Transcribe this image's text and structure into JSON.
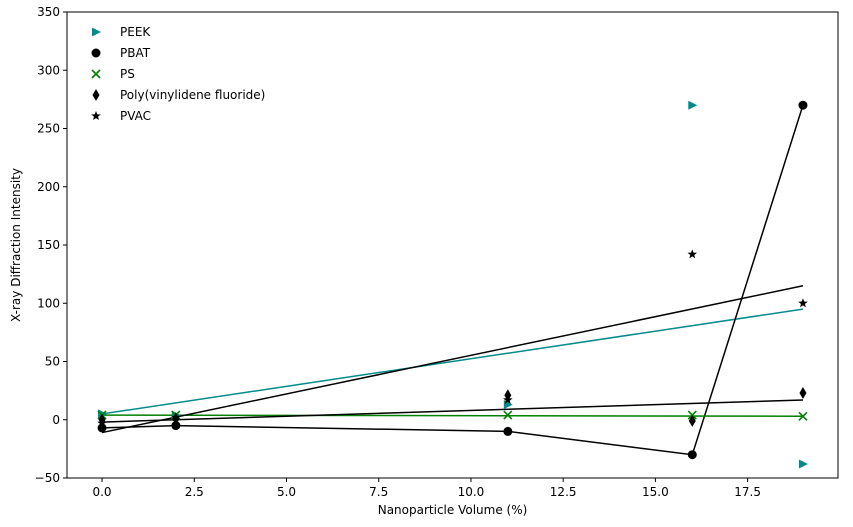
{
  "chart_data": {
    "type": "scatter",
    "xlabel": "Nanoparticle Volume (%)",
    "ylabel": "X-ray Diffraction Intensity",
    "xlim": [
      -0.95,
      19.95
    ],
    "ylim": [
      -50,
      350
    ],
    "xticks": [
      0.0,
      2.5,
      5.0,
      7.5,
      10.0,
      12.5,
      15.0,
      17.5
    ],
    "xtick_labels": [
      "0.0",
      "2.5",
      "5.0",
      "7.5",
      "10.0",
      "12.5",
      "15.0",
      "17.5"
    ],
    "yticks": [
      -50,
      0,
      50,
      100,
      150,
      200,
      250,
      300,
      350
    ],
    "ytick_labels": [
      "−50",
      "0",
      "50",
      "100",
      "150",
      "200",
      "250",
      "300",
      "350"
    ],
    "grid": false,
    "legend_position": "top-left",
    "series": [
      {
        "name": "PEEK",
        "marker": "triangle-right",
        "color": "#008b8b",
        "points": [
          [
            0,
            5
          ],
          [
            2,
            4
          ],
          [
            11,
            13
          ],
          [
            16,
            270
          ],
          [
            19,
            -38
          ]
        ],
        "fit_line": {
          "type": "straight",
          "color": "#008b8b",
          "points": [
            [
              0,
              5
            ],
            [
              19,
              95
            ]
          ]
        }
      },
      {
        "name": "PBAT",
        "marker": "circle",
        "color": "#000000",
        "points": [
          [
            0,
            -7
          ],
          [
            2,
            -5
          ],
          [
            11,
            -10
          ],
          [
            16,
            -30
          ],
          [
            19,
            270
          ]
        ],
        "fit_line": {
          "type": "connected",
          "color": "#000000",
          "points": [
            [
              0,
              -7
            ],
            [
              2,
              -5
            ],
            [
              11,
              -10
            ],
            [
              16,
              -30
            ],
            [
              19,
              270
            ]
          ]
        }
      },
      {
        "name": "PS",
        "marker": "x",
        "color": "#008000",
        "points": [
          [
            0,
            4
          ],
          [
            2,
            4
          ],
          [
            11,
            4
          ],
          [
            16,
            4
          ],
          [
            19,
            3
          ]
        ],
        "fit_line": {
          "type": "straight",
          "color": "#008000",
          "points": [
            [
              0,
              4
            ],
            [
              19,
              3
            ]
          ]
        }
      },
      {
        "name": "Poly(vinylidene fluoride)",
        "marker": "thin-diamond",
        "color": "#000000",
        "points": [
          [
            0,
            0
          ],
          [
            2,
            1
          ],
          [
            11,
            21
          ],
          [
            16,
            -1
          ],
          [
            19,
            23
          ]
        ],
        "fit_line": {
          "type": "straight",
          "color": "#000000",
          "points": [
            [
              0,
              -2
            ],
            [
              19,
              17
            ]
          ]
        }
      },
      {
        "name": "PVAC",
        "marker": "star",
        "color": "#000000",
        "points": [
          [
            0,
            -3
          ],
          [
            2,
            2
          ],
          [
            11,
            17
          ],
          [
            16,
            142
          ],
          [
            19,
            100
          ]
        ],
        "fit_line": {
          "type": "straight",
          "color": "#000000",
          "points": [
            [
              0,
              -11
            ],
            [
              19,
              115
            ]
          ]
        }
      }
    ]
  }
}
